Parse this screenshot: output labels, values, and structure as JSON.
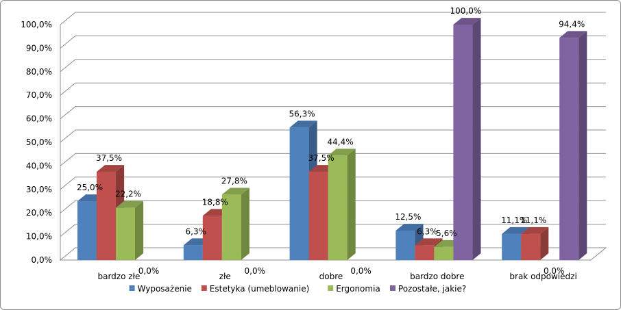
{
  "chart_data": {
    "type": "bar",
    "categories": [
      "bardzo złe",
      "złe",
      "dobre",
      "bardzo dobre",
      "brak odpowiedzi"
    ],
    "series": [
      {
        "name": "Wyposażenie",
        "color": "#4f81bd",
        "values": [
          25.0,
          6.3,
          56.3,
          12.5,
          11.1
        ],
        "labels": [
          "25,0%",
          "6,3%",
          "56,3%",
          "12,5%",
          "11,1%"
        ]
      },
      {
        "name": "Estetyka (umeblowanie)",
        "color": "#c0504d",
        "values": [
          37.5,
          18.8,
          37.5,
          6.3,
          11.1
        ],
        "labels": [
          "37,5%",
          "18,8%",
          "37,5%",
          "6,3%",
          "11,1%"
        ]
      },
      {
        "name": "Ergonomia",
        "color": "#9bbb59",
        "values": [
          22.2,
          27.8,
          44.4,
          5.6,
          0.0
        ],
        "labels": [
          "22,2%",
          "27,8%",
          "44,4%",
          "5,6%",
          "0,0%"
        ]
      },
      {
        "name": "Pozostałe, jakie?",
        "color": "#8064a2",
        "values": [
          0.0,
          0.0,
          0.0,
          100.0,
          94.4
        ],
        "labels": [
          "0,0%",
          "0,0%",
          "0,0%",
          "100,0%",
          "94,4%"
        ]
      }
    ],
    "y_ticks": [
      "0,0%",
      "10,0%",
      "20,0%",
      "30,0%",
      "40,0%",
      "50,0%",
      "60,0%",
      "70,0%",
      "80,0%",
      "90,0%",
      "100,0%"
    ],
    "ylim": [
      0,
      100
    ],
    "grid": true,
    "legend": "bottom",
    "style": "3d-clustered-column"
  }
}
